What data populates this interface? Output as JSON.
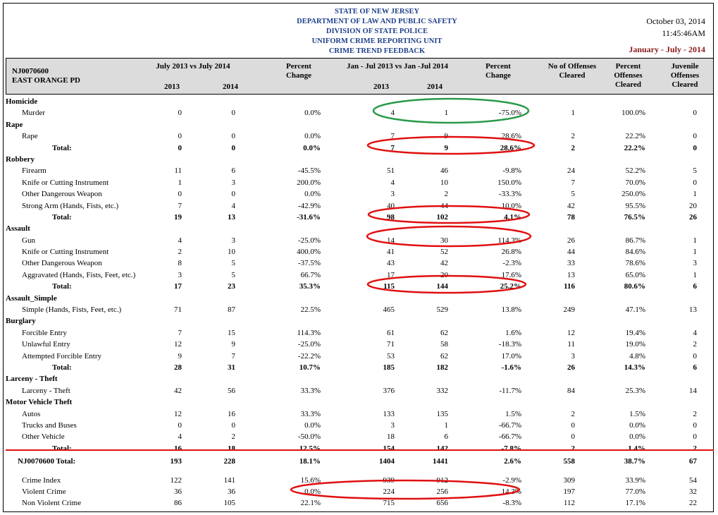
{
  "header": {
    "lines": [
      "STATE OF NEW JERSEY",
      "DEPARTMENT OF LAW AND PUBLIC SAFETY",
      "DIVISION OF STATE POLICE",
      "UNIFORM CRIME REPORTING UNIT",
      "CRIME TREND FEEDBACK"
    ],
    "date": "October 03, 2014",
    "time": "11:45:46AM",
    "period": "January - July - 2014"
  },
  "columns": {
    "agency_code": "NJ0070600",
    "agency_name": "EAST ORANGE PD",
    "month_compare": "July 2013 vs July 2014",
    "ytd_compare": "Jan - Jul 2013 vs Jan -Jul  2014",
    "y2013": "2013",
    "y2014": "2014",
    "pct_change": "Percent Change",
    "no_cleared": "No of Offenses Cleared",
    "pct_cleared": "Percent Offenses Cleared",
    "juv_cleared": "Juvenile Offenses Cleared"
  },
  "rows": [
    {
      "label": "Homicide",
      "type": "cat"
    },
    {
      "label": "Murder",
      "type": "item",
      "v": [
        "0",
        "0",
        "0.0%",
        "4",
        "1",
        "-75.0%",
        "1",
        "100.0%",
        "0"
      ]
    },
    {
      "label": "Rape",
      "type": "cat"
    },
    {
      "label": "Rape",
      "type": "item",
      "v": [
        "0",
        "0",
        "0.0%",
        "7",
        "9",
        "28.6%",
        "2",
        "22.2%",
        "0"
      ]
    },
    {
      "label": "Total:",
      "type": "total",
      "v": [
        "0",
        "0",
        "0.0%",
        "7",
        "9",
        "28.6%",
        "2",
        "22.2%",
        "0"
      ]
    },
    {
      "label": "Robbery",
      "type": "cat"
    },
    {
      "label": "Firearm",
      "type": "item",
      "v": [
        "11",
        "6",
        "-45.5%",
        "51",
        "46",
        "-9.8%",
        "24",
        "52.2%",
        "5"
      ]
    },
    {
      "label": "Knife or Cutting Instrument",
      "type": "item",
      "v": [
        "1",
        "3",
        "200.0%",
        "4",
        "10",
        "150.0%",
        "7",
        "70.0%",
        "0"
      ]
    },
    {
      "label": "Other Dangerous Weapon",
      "type": "item",
      "v": [
        "0",
        "0",
        "0.0%",
        "3",
        "2",
        "-33.3%",
        "5",
        "250.0%",
        "1"
      ]
    },
    {
      "label": "Strong Arm (Hands, Fists, etc.)",
      "type": "item",
      "v": [
        "7",
        "4",
        "-42.9%",
        "40",
        "44",
        "10.0%",
        "42",
        "95.5%",
        "20"
      ]
    },
    {
      "label": "Total:",
      "type": "total",
      "v": [
        "19",
        "13",
        "-31.6%",
        "98",
        "102",
        "4.1%",
        "78",
        "76.5%",
        "26"
      ]
    },
    {
      "label": "Assault",
      "type": "cat"
    },
    {
      "label": "Gun",
      "type": "item",
      "v": [
        "4",
        "3",
        "-25.0%",
        "14",
        "30",
        "114.3%",
        "26",
        "86.7%",
        "1"
      ]
    },
    {
      "label": "Knife or Cutting Instrument",
      "type": "item",
      "v": [
        "2",
        "10",
        "400.0%",
        "41",
        "52",
        "26.8%",
        "44",
        "84.6%",
        "1"
      ]
    },
    {
      "label": "Other Dangerous Weapon",
      "type": "item",
      "v": [
        "8",
        "5",
        "-37.5%",
        "43",
        "42",
        "-2.3%",
        "33",
        "78.6%",
        "3"
      ]
    },
    {
      "label": "Aggravated (Hands, Fists, Feet, etc.)",
      "type": "item",
      "v": [
        "3",
        "5",
        "66.7%",
        "17",
        "20",
        "17.6%",
        "13",
        "65.0%",
        "1"
      ]
    },
    {
      "label": "Total:",
      "type": "total",
      "v": [
        "17",
        "23",
        "35.3%",
        "115",
        "144",
        "25.2%",
        "116",
        "80.6%",
        "6"
      ]
    },
    {
      "label": "Assault_Simple",
      "type": "cat"
    },
    {
      "label": "Simple (Hands, Fists, Feet, etc.)",
      "type": "item",
      "v": [
        "71",
        "87",
        "22.5%",
        "465",
        "529",
        "13.8%",
        "249",
        "47.1%",
        "13"
      ]
    },
    {
      "label": "Burglary",
      "type": "cat"
    },
    {
      "label": "Forcible Entry",
      "type": "item",
      "v": [
        "7",
        "15",
        "114.3%",
        "61",
        "62",
        "1.6%",
        "12",
        "19.4%",
        "4"
      ]
    },
    {
      "label": "Unlawful Entry",
      "type": "item",
      "v": [
        "12",
        "9",
        "-25.0%",
        "71",
        "58",
        "-18.3%",
        "11",
        "19.0%",
        "2"
      ]
    },
    {
      "label": "Attempted Forcible Entry",
      "type": "item",
      "v": [
        "9",
        "7",
        "-22.2%",
        "53",
        "62",
        "17.0%",
        "3",
        "4.8%",
        "0"
      ]
    },
    {
      "label": "Total:",
      "type": "total",
      "v": [
        "28",
        "31",
        "10.7%",
        "185",
        "182",
        "-1.6%",
        "26",
        "14.3%",
        "6"
      ]
    },
    {
      "label": "Larceny - Theft",
      "type": "cat"
    },
    {
      "label": "Larceny - Theft",
      "type": "item",
      "v": [
        "42",
        "56",
        "33.3%",
        "376",
        "332",
        "-11.7%",
        "84",
        "25.3%",
        "14"
      ]
    },
    {
      "label": "Motor Vehicle Theft",
      "type": "cat"
    },
    {
      "label": "Autos",
      "type": "item",
      "v": [
        "12",
        "16",
        "33.3%",
        "133",
        "135",
        "1.5%",
        "2",
        "1.5%",
        "2"
      ]
    },
    {
      "label": "Trucks and Buses",
      "type": "item",
      "v": [
        "0",
        "0",
        "0.0%",
        "3",
        "1",
        "-66.7%",
        "0",
        "0.0%",
        "0"
      ]
    },
    {
      "label": "Other Vehicle",
      "type": "item",
      "v": [
        "4",
        "2",
        "-50.0%",
        "18",
        "6",
        "-66.7%",
        "0",
        "0.0%",
        "0"
      ]
    },
    {
      "label": "Total:",
      "type": "total",
      "v": [
        "16",
        "18",
        "12.5%",
        "154",
        "142",
        "-7.8%",
        "2",
        "1.4%",
        "2"
      ]
    },
    {
      "label": "NJ0070600  Total:",
      "type": "grand",
      "v": [
        "193",
        "228",
        "18.1%",
        "1404",
        "1441",
        "2.6%",
        "558",
        "38.7%",
        "67"
      ]
    },
    {
      "label": "",
      "type": "spacer"
    },
    {
      "label": "Crime Index",
      "type": "item",
      "v": [
        "122",
        "141",
        "15.6%",
        "939",
        "912",
        "-2.9%",
        "309",
        "33.9%",
        "54"
      ]
    },
    {
      "label": "Violent Crime",
      "type": "item",
      "v": [
        "36",
        "36",
        "0.0%",
        "224",
        "256",
        "14.3%",
        "197",
        "77.0%",
        "32"
      ]
    },
    {
      "label": "Non Violent Crime",
      "type": "item",
      "v": [
        "86",
        "105",
        "22.1%",
        "715",
        "656",
        "-8.3%",
        "112",
        "17.1%",
        "22"
      ]
    }
  ]
}
